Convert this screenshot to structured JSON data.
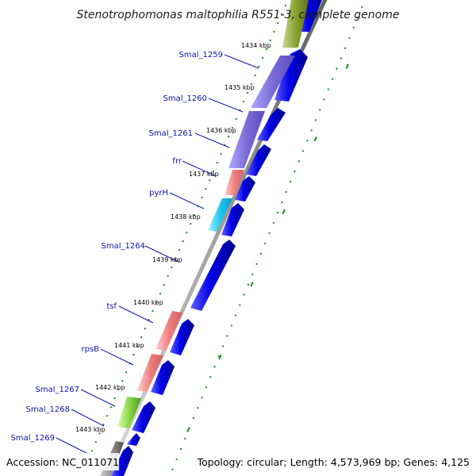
{
  "title": "Stenotrophomonas maltophilia R551-3, complete genome",
  "footer": {
    "accession": "Accession: NC_011071",
    "topology": "Topology: circular; Length: 4,573,969 bp; Genes: 4,125"
  },
  "colors": {
    "forward_strand": "#0000e6",
    "rRNA_protein": "#f08080",
    "purple_gene": "#7b6bd8",
    "cyan_gene": "#22c8f0",
    "green_gene": "#8ad64a",
    "olive_gene": "#8aa030",
    "gray_gene": "#808080",
    "label_blue": "#1010b0",
    "tick_green": "#1a8a1a"
  },
  "ticks": [
    {
      "label": "1434 kbp"
    },
    {
      "label": "1435 kbp"
    },
    {
      "label": "1436 kbp"
    },
    {
      "label": "1437 kbp"
    },
    {
      "label": "1438 kbp"
    },
    {
      "label": "1439 kbp"
    },
    {
      "label": "1440 kbp"
    },
    {
      "label": "1441 kbp"
    },
    {
      "label": "1442 kbp"
    },
    {
      "label": "1443 kbp"
    }
  ],
  "genes": [
    {
      "name": "Smal_1259"
    },
    {
      "name": "Smal_1260"
    },
    {
      "name": "Smal_1261"
    },
    {
      "name": "frr"
    },
    {
      "name": "pyrH"
    },
    {
      "name": "Smal_1264"
    },
    {
      "name": "tsf"
    },
    {
      "name": "rpsB"
    },
    {
      "name": "Smal_1267"
    },
    {
      "name": "Smal_1268"
    },
    {
      "name": "Smal_1269"
    }
  ]
}
